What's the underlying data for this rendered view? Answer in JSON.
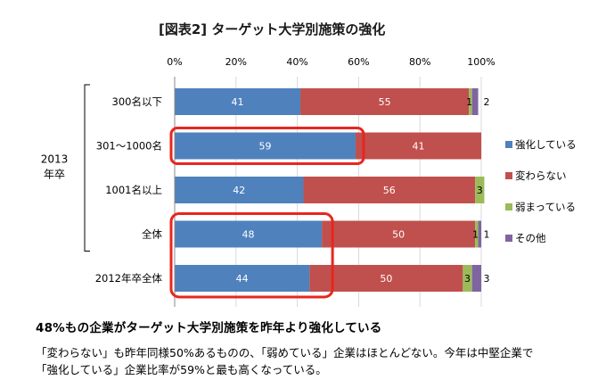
{
  "chart_data": {
    "type": "bar",
    "orientation": "horizontal",
    "stacked": "percent",
    "title": "[図表2] ターゲット大学別施策の強化",
    "xlim": [
      0,
      100
    ],
    "x_ticks": [
      "0%",
      "20%",
      "40%",
      "60%",
      "80%",
      "100%"
    ],
    "grid": true,
    "group_label": [
      "2013",
      "年卒"
    ],
    "categories": [
      "300名以下",
      "301～1000名",
      "1001名以上",
      "全体",
      "2012年卒全体"
    ],
    "series": [
      {
        "name": "強化している",
        "color": "#4F81BD",
        "values": [
          41,
          59,
          42,
          48,
          44
        ],
        "labels": [
          "41",
          "59",
          "42",
          "48",
          "44"
        ]
      },
      {
        "name": "変わらない",
        "color": "#C0504D",
        "values": [
          55,
          41,
          56,
          50,
          50
        ],
        "labels": [
          "55",
          "41",
          "56",
          "50",
          "50"
        ]
      },
      {
        "name": "弱まっている",
        "color": "#9BBB59",
        "values": [
          1,
          0,
          3,
          1,
          3
        ],
        "labels": [
          "1",
          "",
          "3",
          "1",
          "3"
        ]
      },
      {
        "name": "その他",
        "color": "#8064A2",
        "values": [
          2,
          0,
          0,
          1,
          3
        ],
        "labels": [
          "2",
          "",
          "",
          "1",
          "3"
        ]
      }
    ],
    "legend": "right",
    "highlight_color": "#E8261E"
  },
  "text": {
    "headline": "48%もの企業がターゲット大学別施策を昨年より強化している",
    "line1": "「変わらない」も昨年同様50%あるものの、「弱めている」企業はほとんどない。今年は中堅企業で",
    "line2": "「強化している」企業比率が59%と最も高くなっている。"
  }
}
